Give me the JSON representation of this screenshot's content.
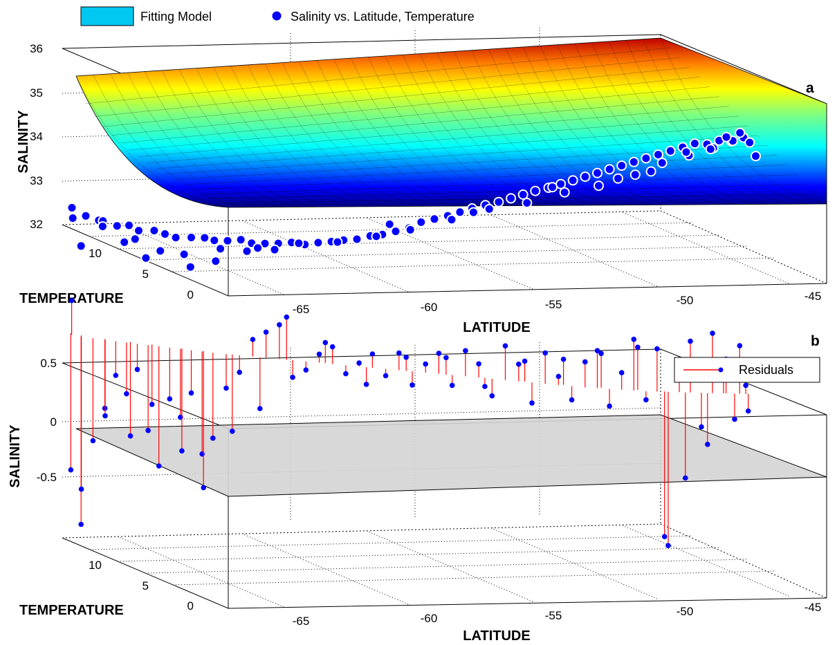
{
  "legend_top": {
    "surface_label": "Fitting Model",
    "points_label": "Salinity vs. Latitude, Temperature"
  },
  "colors": {
    "marker_fill": "#0000ff",
    "marker_edge": "#ffffff",
    "residual_line": "#ff0000",
    "residual_marker": "#0000ff",
    "zero_plane": "#d4d4d4",
    "legend_swatch": "#00c8f0"
  },
  "chart_data": [
    {
      "type": "scatter",
      "panel_label": "a",
      "series": [
        {
          "name": "Fitting Model",
          "kind": "surface"
        },
        {
          "name": "Salinity vs. Latitude, Temperature",
          "kind": "points"
        }
      ],
      "xlabel": "LATITUDE",
      "ylabel": "TEMPERATURE",
      "zlabel": "SALINITY",
      "xlim": [
        -68,
        -44
      ],
      "ylim": [
        0,
        15
      ],
      "zlim": [
        32,
        36
      ],
      "x_ticks": [
        "-65",
        "-60",
        "-55",
        "-50",
        "-45"
      ],
      "y_ticks": [
        "0",
        "5",
        "10"
      ],
      "z_ticks": [
        "32",
        "33",
        "34",
        "35",
        "36"
      ],
      "grid": true,
      "colormap": "jet",
      "model_profile": {
        "x": [
          -68,
          -65,
          -62,
          -60,
          -58,
          -56,
          -54,
          -52,
          -50,
          -48,
          -46,
          -44
        ],
        "z": [
          32.0,
          32.01,
          32.04,
          32.1,
          32.18,
          32.3,
          32.46,
          32.7,
          33.05,
          33.5,
          34.2,
          35.2
        ]
      },
      "points": {
        "x": [
          -67.8,
          -67.5,
          -67.2,
          -66.9,
          -66.6,
          -66.3,
          -66.0,
          -65.6,
          -65.3,
          -65.0,
          -64.6,
          -64.2,
          -63.9,
          -63.5,
          -63.1,
          -62.8,
          -62.4,
          -62.0,
          -61.6,
          -61.2,
          -60.8,
          -60.4,
          -60.0,
          -59.6,
          -59.2,
          -58.8,
          -58.4,
          -58.0,
          -57.6,
          -57.2,
          -56.8,
          -56.4,
          -56.0,
          -55.6,
          -55.2,
          -54.8,
          -54.4,
          -54.0,
          -53.6,
          -53.2,
          -52.8,
          -52.4,
          -52.0,
          -51.6,
          -51.2,
          -50.8,
          -50.4,
          -50.0,
          -49.6,
          -49.2,
          -48.8,
          -48.4,
          -48.0,
          -47.6,
          -47.2,
          -66.4,
          -65.8,
          -64.8,
          -63.7,
          -62.6,
          -61.4,
          -60.2,
          -59.0,
          -57.9,
          -56.6,
          -55.4,
          -54.2,
          -53.0,
          -51.9,
          -50.7,
          -49.8,
          -48.9,
          -48.1,
          -47.5,
          -67.7,
          -67.6,
          -67.0,
          -66.1,
          -65.4,
          -64.5,
          -63.8,
          -62.9,
          -62.1,
          -58.6,
          -55.9,
          -53.4,
          -51.3,
          -50.2,
          -49.1,
          -48.3,
          -47.8,
          -47.3,
          -47.0,
          -46.8
        ],
        "y": [
          14.5,
          14.0,
          13.5,
          13.8,
          13.2,
          12.8,
          12.6,
          12.1,
          11.8,
          11.5,
          11.0,
          10.7,
          10.5,
          10.2,
          9.9,
          9.6,
          9.3,
          9.0,
          8.7,
          8.4,
          8.1,
          7.8,
          7.6,
          7.3,
          7.0,
          6.8,
          6.5,
          6.2,
          6.0,
          5.7,
          5.4,
          5.2,
          5.0,
          4.7,
          4.4,
          4.2,
          4.0,
          3.8,
          3.5,
          3.3,
          3.1,
          2.9,
          2.7,
          2.5,
          2.3,
          2.1,
          1.9,
          1.7,
          1.5,
          1.3,
          1.1,
          0.9,
          0.7,
          0.5,
          0.3,
          13.0,
          12.4,
          11.2,
          10.4,
          9.5,
          8.5,
          7.7,
          6.9,
          6.3,
          5.5,
          4.8,
          4.1,
          3.4,
          2.8,
          2.2,
          1.8,
          1.4,
          1.0,
          0.6,
          14.8,
          14.2,
          13.6,
          12.7,
          12.0,
          11.3,
          10.6,
          9.8,
          9.1,
          6.6,
          5.1,
          3.6,
          2.4,
          1.9,
          1.2,
          0.8,
          0.5,
          0.4,
          0.2,
          0.1
        ],
        "z": [
          32.2,
          32.3,
          32.25,
          32.2,
          32.15,
          32.2,
          32.1,
          32.15,
          32.1,
          32.05,
          32.1,
          32.12,
          32.08,
          32.1,
          32.15,
          32.1,
          32.12,
          32.15,
          32.2,
          32.18,
          32.25,
          32.3,
          32.35,
          32.4,
          32.5,
          32.55,
          32.65,
          32.75,
          32.9,
          33.0,
          33.1,
          33.2,
          33.3,
          33.4,
          33.5,
          33.6,
          33.7,
          33.8,
          33.9,
          34.0,
          34.1,
          34.2,
          34.3,
          34.4,
          34.5,
          34.6,
          34.7,
          34.8,
          34.9,
          35.0,
          35.1,
          35.1,
          35.2,
          35.2,
          35.3,
          31.8,
          31.5,
          31.7,
          31.9,
          32.0,
          32.2,
          32.3,
          32.5,
          32.7,
          33.0,
          33.3,
          33.5,
          33.8,
          34.0,
          34.3,
          34.6,
          34.8,
          35.0,
          35.2,
          32.4,
          31.6,
          32.1,
          31.9,
          31.7,
          31.4,
          31.6,
          31.9,
          32.0,
          32.8,
          33.2,
          33.9,
          34.2,
          34.4,
          34.9,
          35.0,
          35.3,
          35.4,
          35.2,
          34.9
        ]
      }
    },
    {
      "type": "scatter",
      "panel_label": "b",
      "series": [
        {
          "name": "Residuals",
          "kind": "stem"
        }
      ],
      "xlabel": "LATITUDE",
      "ylabel": "TEMPERATURE",
      "zlabel": "SALINITY",
      "xlim": [
        -68,
        -44
      ],
      "ylim": [
        0,
        15
      ],
      "zlim": [
        -1.2,
        0.5
      ],
      "x_ticks": [
        "-65",
        "-60",
        "-55",
        "-50",
        "-45"
      ],
      "y_ticks": [
        "0",
        "5",
        "10"
      ],
      "z_ticks": [
        "-0.5",
        "0",
        "0.5"
      ],
      "grid": true,
      "legend_location": "top-right",
      "points": {
        "x": [
          -67.8,
          -67.6,
          -67.3,
          -67.0,
          -66.7,
          -66.4,
          -66.1,
          -65.8,
          -65.5,
          -65.2,
          -64.9,
          -64.6,
          -64.3,
          -64.0,
          -63.6,
          -63.2,
          -62.8,
          -62.4,
          -62.0,
          -61.6,
          -61.2,
          -60.8,
          -60.4,
          -60.0,
          -59.6,
          -59.2,
          -58.8,
          -58.4,
          -58.0,
          -57.6,
          -57.2,
          -56.8,
          -56.4,
          -56.0,
          -55.6,
          -55.2,
          -54.8,
          -54.4,
          -54.0,
          -53.6,
          -53.2,
          -52.8,
          -52.4,
          -52.0,
          -51.6,
          -51.2,
          -50.8,
          -50.4,
          -50.0,
          -49.6,
          -49.2,
          -48.8,
          -48.4,
          -48.0,
          -47.6,
          -47.2,
          -67.7,
          -67.5,
          -66.9,
          -66.2,
          -65.6,
          -64.8,
          -64.2,
          -63.4,
          -62.6,
          -61.8,
          -60.6,
          -59.4,
          -58.2,
          -57.0,
          -55.8,
          -54.6,
          -53.4,
          -52.2,
          -51.0,
          -50.1,
          -49.4,
          -48.6,
          -47.9,
          -47.4,
          -47.1
        ],
        "y": [
          14.6,
          14.2,
          13.8,
          13.4,
          13.1,
          12.8,
          12.5,
          12.2,
          11.9,
          11.6,
          11.3,
          11.0,
          10.7,
          10.4,
          10.1,
          9.8,
          9.5,
          9.2,
          8.9,
          8.6,
          8.3,
          8.0,
          7.7,
          7.4,
          7.1,
          6.8,
          6.5,
          6.2,
          5.9,
          5.6,
          5.3,
          5.0,
          4.7,
          4.4,
          4.1,
          3.8,
          3.5,
          3.2,
          2.9,
          2.6,
          2.3,
          2.0,
          1.8,
          1.6,
          1.4,
          1.2,
          1.0,
          0.9,
          0.8,
          0.7,
          0.6,
          0.5,
          0.4,
          0.3,
          0.2,
          0.1,
          14.9,
          14.4,
          13.6,
          12.9,
          12.3,
          11.4,
          10.8,
          10.0,
          9.3,
          8.7,
          7.9,
          6.9,
          6.0,
          5.1,
          4.3,
          3.4,
          2.6,
          1.9,
          1.3,
          0.9,
          0.6,
          0.4,
          0.3,
          0.2,
          0.1
        ],
        "z": [
          0.2,
          -1.1,
          -0.6,
          -0.4,
          -0.2,
          -0.3,
          -0.15,
          -0.5,
          -0.7,
          -0.3,
          -0.4,
          -0.25,
          -0.6,
          -0.5,
          -0.2,
          -0.1,
          0.1,
          0.15,
          0.2,
          -0.1,
          -0.05,
          0.05,
          0.1,
          -0.05,
          0.02,
          0.08,
          -0.04,
          0.1,
          -0.08,
          0.05,
          0.12,
          -0.06,
          0.15,
          0.08,
          -0.1,
          0.2,
          0.1,
          -0.12,
          0.18,
          0.05,
          -0.08,
          0.15,
          0.22,
          -0.1,
          0.1,
          0.3,
          -0.05,
          0.25,
          -0.9,
          0.1,
          0.3,
          -0.2,
          0.35,
          0.1,
          -0.15,
          0.05,
          -0.8,
          -0.9,
          -0.45,
          -0.55,
          -0.35,
          -0.6,
          -0.8,
          -0.45,
          -0.3,
          0.25,
          0.12,
          -0.1,
          0.08,
          0.1,
          -0.05,
          0.12,
          0.15,
          0.2,
          0.25,
          -0.85,
          -0.5,
          -0.3,
          0.2,
          0.28,
          -0.1
        ]
      }
    }
  ]
}
